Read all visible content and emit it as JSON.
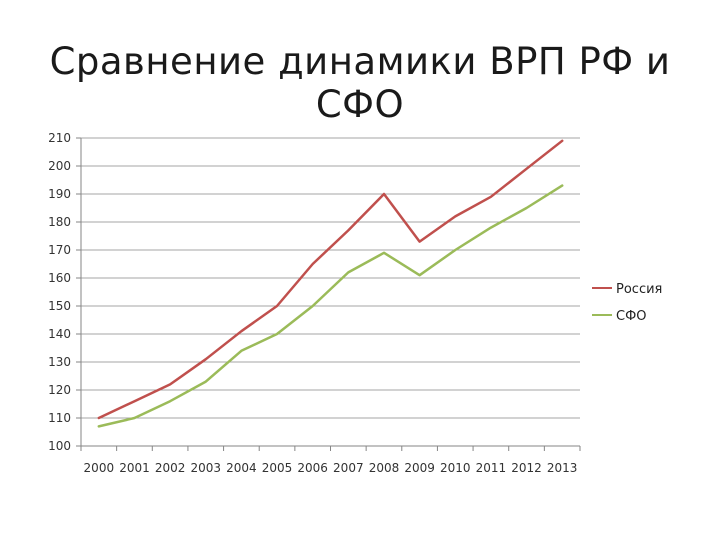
{
  "title": "Сравнение динамики ВРП РФ и СФО",
  "chart_data": {
    "type": "line",
    "title": "Сравнение динамики ВРП РФ и СФО",
    "xlabel": "",
    "ylabel": "",
    "x": [
      "2000",
      "2001",
      "2002",
      "2003",
      "2004",
      "2005",
      "2006",
      "2007",
      "2008",
      "2009",
      "2010",
      "2011",
      "2012",
      "2013"
    ],
    "ylim": [
      100,
      210
    ],
    "yticks": [
      100,
      110,
      120,
      130,
      140,
      150,
      160,
      170,
      180,
      190,
      200,
      210
    ],
    "grid": true,
    "legend_position": "right",
    "series": [
      {
        "name": "Россия",
        "color": "#c0504d",
        "values": [
          110,
          116,
          122,
          131,
          141,
          150,
          165,
          177,
          190,
          173,
          182,
          189,
          199,
          209
        ]
      },
      {
        "name": "СФО",
        "color": "#9bbb59",
        "values": [
          107,
          110,
          116,
          123,
          134,
          140,
          150,
          162,
          169,
          161,
          170,
          178,
          185,
          193
        ]
      }
    ]
  }
}
